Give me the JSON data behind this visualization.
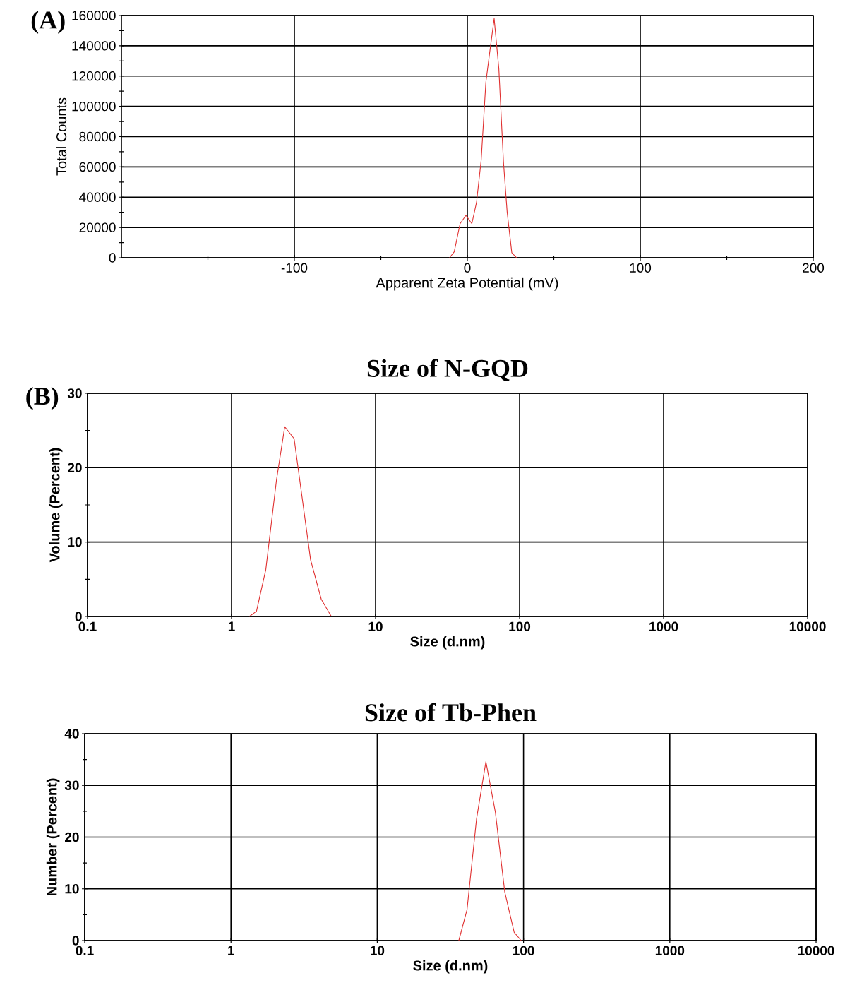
{
  "chart_data": [
    {
      "type": "line",
      "xlabel": "Apparent Zeta Potential (mV)",
      "ylabel": "Total Counts",
      "annotations": [
        "(A)"
      ],
      "xlim": [
        -200,
        200
      ],
      "xticks": [
        {
          "value": -150,
          "label": null
        },
        -100,
        {
          "value": -50,
          "label": null
        },
        0,
        {
          "value": 50,
          "label": null
        },
        100,
        {
          "value": 150,
          "label": null
        },
        200
      ],
      "ylim": [
        0,
        160000
      ],
      "yticks": [
        0,
        {
          "value": 10000,
          "label": null
        },
        20000,
        {
          "value": 30000,
          "label": null
        },
        40000,
        {
          "value": 50000,
          "label": null
        },
        60000,
        {
          "value": 70000,
          "label": null
        },
        80000,
        {
          "value": 90000,
          "label": null
        },
        100000,
        {
          "value": 110000,
          "label": null
        },
        120000,
        {
          "value": 130000,
          "label": null
        },
        140000,
        {
          "value": 150000,
          "label": null
        },
        160000
      ],
      "grid": true,
      "series": [
        {
          "color": "#e03030",
          "x": [
            -10.3,
            -7.6,
            -4.2,
            -0.8,
            2.6,
            5.3,
            8,
            10.7,
            12.8,
            15.5,
            18.2,
            20.9,
            23,
            25.7,
            28.4
          ],
          "values": [
            0,
            3900,
            22500,
            28000,
            22500,
            36500,
            64500,
            115800,
            134500,
            158000,
            125000,
            63000,
            30300,
            3300,
            0
          ]
        }
      ]
    },
    {
      "type": "line",
      "title": "Size of N-GQD",
      "xlabel": "Size (d.nm)",
      "ylabel": "Volume (Percent)",
      "annotations": [
        "(B)"
      ],
      "log": "x",
      "xlim": [
        0.1,
        10000
      ],
      "xticks": [
        0.1,
        1,
        10,
        100,
        1000,
        10000
      ],
      "ylim": [
        0,
        30
      ],
      "yticks": [
        0,
        {
          "value": 5,
          "label": null
        },
        10,
        {
          "value": 15,
          "label": null
        },
        20,
        {
          "value": 25,
          "label": null
        },
        30
      ],
      "grid": true,
      "series": [
        {
          "color": "#e03030",
          "x": [
            1.33,
            1.49,
            1.73,
            2.05,
            2.34,
            2.72,
            3.54,
            4.2,
            4.93
          ],
          "values": [
            0,
            0.7,
            6.3,
            18.3,
            25.5,
            23.9,
            7.6,
            2.3,
            0
          ]
        }
      ]
    },
    {
      "type": "line",
      "title": "Size of Tb-Phen",
      "xlabel": "Size (d.nm)",
      "ylabel": "Number (Percent)",
      "log": "x",
      "xlim": [
        0.1,
        10000
      ],
      "xticks": [
        0.1,
        1,
        10,
        100,
        1000,
        10000
      ],
      "ylim": [
        0,
        40
      ],
      "yticks": [
        0,
        {
          "value": 5,
          "label": null
        },
        10,
        {
          "value": 15,
          "label": null
        },
        20,
        {
          "value": 25,
          "label": null
        },
        30,
        {
          "value": 35,
          "label": null
        },
        40
      ],
      "grid": true,
      "series": [
        {
          "color": "#e03030",
          "x": [
            36.1,
            41.1,
            47.7,
            55.3,
            64.2,
            74.4,
            86.3,
            96.4
          ],
          "values": [
            0,
            6.0,
            23.5,
            34.6,
            24.8,
            9.4,
            1.6,
            0
          ]
        }
      ]
    }
  ]
}
